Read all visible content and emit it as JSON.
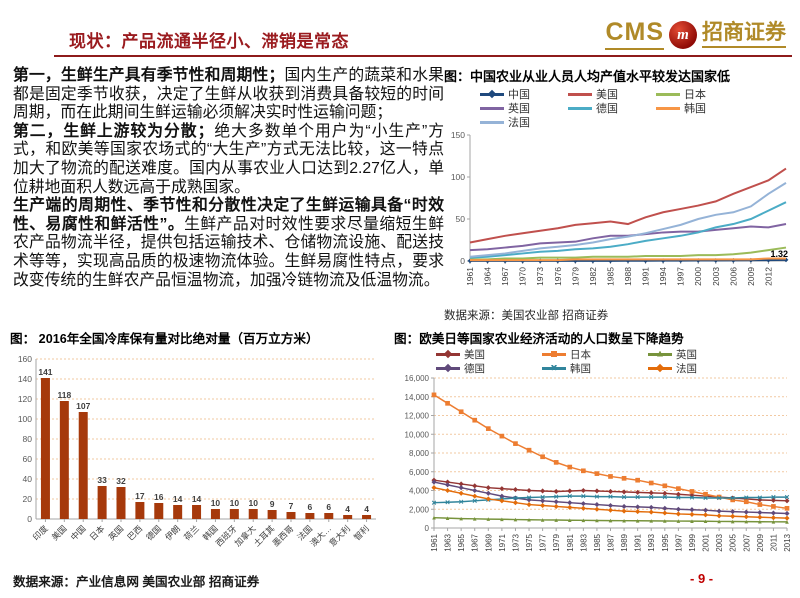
{
  "header": {
    "title": "现状：产品流通半径小、滞销是常态"
  },
  "logo": {
    "cms": "CMS",
    "mark": "m",
    "brand": "招商证券"
  },
  "colors": {
    "title_red": "#9A1B1F",
    "brand_gold": "#B08A28",
    "logo_red": "#C00000",
    "page_red": "#C00000"
  },
  "body_paragraphs": [
    {
      "segments": [
        {
          "text": "第一，生鲜生产具有季节性和周期性；",
          "bold": true
        },
        {
          "text": "国内生产的蔬菜和水果都是固定季节收获，决定了生鲜从收获到消费具备较短的时间周期，而在此期间生鲜运输必须解决实时性运输问题；",
          "bold": false
        }
      ]
    },
    {
      "segments": [
        {
          "text": "第二，生鲜上游较为分散；",
          "bold": true
        },
        {
          "text": "绝大多数单个用户为“小生产”方式，和欧美等国家农场式的“大生产”方式无法比较，这一特点加大了物流的配送难度。国内从事农业人口达到2.27亿人，单位耕地面积人数远高于成熟国家。",
          "bold": false
        }
      ]
    },
    {
      "segments": [
        {
          "text": "生产端的周期性、季节性和分散性决定了生鲜运输具备“时效性、易腐性和鲜活性”。",
          "bold": true
        },
        {
          "text": "生鲜产品对时效性要求尽量缩短生鲜农产品物流半径，提供包括运输技术、仓储物流设施、配送技术等等，实现高品质的极速物流体验。生鲜易腐性特点，要求改变传统的生鲜农产品恒温物流，加强冷链物流及低温物流。",
          "bold": false
        }
      ]
    }
  ],
  "chart_data": [
    {
      "id": "per-capita-output",
      "type": "line",
      "title": "图：中国农业从业人员人均产值水平较发达国家低",
      "source": "数据来源：美国农业部 招商证券",
      "x_years": [
        1961,
        1964,
        1967,
        1970,
        1973,
        1976,
        1979,
        1982,
        1985,
        1988,
        1991,
        1994,
        1997,
        2000,
        2003,
        2006,
        2009,
        2012,
        2014
      ],
      "x_tick_step": 3,
      "ylim": [
        0,
        150
      ],
      "ytick_step": 50,
      "annotation": {
        "text": "1.32",
        "series": "中国"
      },
      "series": [
        {
          "name": "中国",
          "color": "#1F497D",
          "marker": "diamond",
          "values": [
            0.1,
            0.1,
            0.1,
            0.1,
            0.1,
            0.2,
            0.2,
            0.2,
            0.2,
            0.3,
            0.3,
            0.4,
            0.5,
            0.6,
            0.6,
            0.7,
            0.9,
            1.1,
            1.32
          ]
        },
        {
          "name": "美国",
          "color": "#C0504D",
          "marker": null,
          "values": [
            22,
            26,
            30,
            33,
            36,
            39,
            43,
            45,
            47,
            44,
            52,
            58,
            62,
            66,
            71,
            80,
            88,
            96,
            110
          ]
        },
        {
          "name": "日本",
          "color": "#9BBB59",
          "marker": null,
          "values": [
            2,
            2,
            3,
            3,
            4,
            4,
            4,
            5,
            5,
            5,
            6,
            6,
            6,
            7,
            7,
            8,
            10,
            13,
            16
          ]
        },
        {
          "name": "英国",
          "color": "#8064A2",
          "marker": null,
          "values": [
            13,
            14,
            16,
            18,
            21,
            22,
            23,
            27,
            30,
            30,
            32,
            34,
            35,
            35,
            37,
            39,
            41,
            40,
            44
          ]
        },
        {
          "name": "德国",
          "color": "#4BACC6",
          "marker": null,
          "values": [
            4,
            5,
            7,
            9,
            11,
            12,
            14,
            15,
            17,
            20,
            24,
            27,
            30,
            34,
            40,
            44,
            50,
            60,
            70
          ]
        },
        {
          "name": "韩国",
          "color": "#F79646",
          "marker": null,
          "values": [
            1,
            1,
            1,
            1,
            1,
            1,
            2,
            2,
            2,
            2,
            2,
            2,
            2,
            2,
            2,
            2,
            2,
            3,
            3
          ]
        },
        {
          "name": "法国",
          "color": "#95B3D7",
          "marker": null,
          "values": [
            5,
            7,
            9,
            12,
            15,
            17,
            19,
            22,
            26,
            29,
            33,
            38,
            43,
            50,
            55,
            58,
            65,
            80,
            93
          ]
        }
      ]
    },
    {
      "id": "cold-storage-2016",
      "type": "bar",
      "title": "图： 2016年全国冷库保有量对比绝对量（百万立方米）",
      "categories": [
        "印度",
        "美国",
        "中国",
        "日本",
        "英国",
        "巴西",
        "德国",
        "伊朗",
        "荷兰",
        "韩国",
        "西班牙",
        "加拿大",
        "土耳其",
        "墨西哥",
        "法国",
        "澳大…",
        "意大利",
        "智利"
      ],
      "values": [
        141,
        118,
        107,
        33,
        32,
        17,
        16,
        14,
        14,
        10,
        10,
        10,
        9,
        7,
        6,
        6,
        4,
        4
      ],
      "ylim": [
        0,
        160
      ],
      "ytick_step": 20,
      "bar_color": "#A6390B",
      "grid_color": "#F2C9A2"
    },
    {
      "id": "agri-population-decline",
      "type": "line",
      "title": "图：欧美日等国家农业经济活动的人口数呈下降趋势",
      "x_years": [
        1961,
        1963,
        1965,
        1967,
        1969,
        1971,
        1973,
        1975,
        1977,
        1979,
        1981,
        1983,
        1985,
        1987,
        1989,
        1991,
        1993,
        1995,
        1997,
        1999,
        2001,
        2003,
        2005,
        2007,
        2009,
        2011,
        2013
      ],
      "x_tick_step": 2,
      "ylim": [
        0,
        16000
      ],
      "ytick_step": 2000,
      "grid_color": "#F2C9A2",
      "series": [
        {
          "name": "美国",
          "color": "#943634",
          "marker": "diamond",
          "values": [
            5100,
            4900,
            4700,
            4500,
            4300,
            4200,
            4100,
            4000,
            3950,
            3900,
            3950,
            4000,
            3950,
            3900,
            3850,
            3800,
            3750,
            3700,
            3600,
            3500,
            3400,
            3300,
            3200,
            3100,
            3000,
            2950,
            2900
          ]
        },
        {
          "name": "日本",
          "color": "#ED7D31",
          "marker": "square",
          "values": [
            14200,
            13300,
            12400,
            11500,
            10600,
            9800,
            9000,
            8300,
            7600,
            7000,
            6500,
            6100,
            5800,
            5500,
            5300,
            5100,
            4800,
            4500,
            4200,
            3900,
            3600,
            3300,
            3000,
            2800,
            2500,
            2300,
            2100
          ]
        },
        {
          "name": "英国",
          "color": "#77933C",
          "marker": "triangle",
          "values": [
            1100,
            1050,
            1000,
            980,
            950,
            930,
            900,
            880,
            860,
            850,
            830,
            820,
            800,
            790,
            780,
            770,
            760,
            750,
            740,
            730,
            720,
            700,
            690,
            680,
            670,
            660,
            650
          ]
        },
        {
          "name": "德国",
          "color": "#604A7B",
          "marker": "diamond",
          "values": [
            4900,
            4600,
            4300,
            4000,
            3700,
            3400,
            3200,
            3000,
            2900,
            2800,
            2700,
            2600,
            2500,
            2400,
            2300,
            2250,
            2200,
            2100,
            2000,
            1950,
            1900,
            1800,
            1750,
            1700,
            1650,
            1600,
            1550
          ]
        },
        {
          "name": "韩国",
          "color": "#31859C",
          "marker": "x",
          "values": [
            2700,
            2750,
            2800,
            2900,
            3000,
            3100,
            3200,
            3250,
            3300,
            3350,
            3400,
            3400,
            3350,
            3350,
            3300,
            3300,
            3300,
            3300,
            3250,
            3250,
            3200,
            3200,
            3200,
            3250,
            3250,
            3300,
            3300
          ]
        },
        {
          "name": "法国",
          "color": "#E36C0A",
          "marker": "diamond",
          "values": [
            4300,
            4000,
            3700,
            3400,
            3100,
            2900,
            2700,
            2500,
            2400,
            2300,
            2200,
            2100,
            2000,
            1900,
            1800,
            1750,
            1700,
            1600,
            1500,
            1450,
            1400,
            1300,
            1250,
            1200,
            1150,
            1100,
            1050
          ]
        }
      ]
    }
  ],
  "footer": {
    "source": "数据来源：产业信息网 美国农业部 招商证券",
    "page": "- 9 -"
  }
}
